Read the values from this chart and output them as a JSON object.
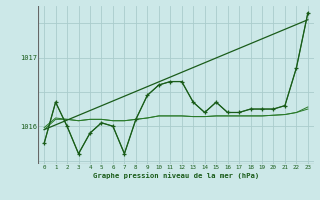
{
  "title": "Graphe pression niveau de la mer (hPa)",
  "bg_color": "#cce8e8",
  "grid_color": "#aacccc",
  "line_color_dark": "#1a5c1a",
  "line_color_med": "#2a7a2a",
  "xlim_min": -0.5,
  "xlim_max": 23.5,
  "ylim_min": 1015.45,
  "ylim_max": 1017.75,
  "yticks": [
    1016,
    1017
  ],
  "xticks": [
    0,
    1,
    2,
    3,
    4,
    5,
    6,
    7,
    8,
    9,
    10,
    11,
    12,
    13,
    14,
    15,
    16,
    17,
    18,
    19,
    20,
    21,
    22,
    23
  ],
  "series_flat1": [
    1015.95,
    1016.1,
    1016.1,
    1016.08,
    1016.1,
    1016.1,
    1016.08,
    1016.08,
    1016.1,
    1016.12,
    1016.15,
    1016.15,
    1016.15,
    1016.14,
    1016.14,
    1016.15,
    1016.15,
    1016.15,
    1016.15,
    1016.15,
    1016.16,
    1016.17,
    1016.2,
    1016.25
  ],
  "series_flat2": [
    1015.98,
    1016.12,
    1016.1,
    1016.08,
    1016.1,
    1016.1,
    1016.08,
    1016.08,
    1016.1,
    1016.12,
    1016.15,
    1016.15,
    1016.15,
    1016.14,
    1016.14,
    1016.15,
    1016.15,
    1016.15,
    1016.15,
    1016.15,
    1016.16,
    1016.17,
    1016.2,
    1016.28
  ],
  "series_wavy": [
    1015.75,
    1016.35,
    1016.0,
    1015.6,
    1015.9,
    1016.05,
    1016.0,
    1015.6,
    1016.1,
    1016.45,
    1016.6,
    1016.65,
    1016.65,
    1016.35,
    1016.2,
    1016.35,
    1016.2,
    1016.2,
    1016.25,
    1016.25,
    1016.25,
    1016.3,
    1016.85,
    1017.65
  ],
  "series_trend_x": [
    0,
    23
  ],
  "series_trend": [
    1015.95,
    1017.55
  ],
  "series_main": [
    1015.75,
    1016.35,
    1016.0,
    1015.6,
    1015.9,
    1016.05,
    1016.0,
    1015.6,
    1016.1,
    1016.45,
    1016.6,
    1016.65,
    1016.65,
    1016.35,
    1016.2,
    1016.35,
    1016.2,
    1016.2,
    1016.25,
    1016.25,
    1016.25,
    1016.3,
    1016.85,
    1017.65
  ]
}
